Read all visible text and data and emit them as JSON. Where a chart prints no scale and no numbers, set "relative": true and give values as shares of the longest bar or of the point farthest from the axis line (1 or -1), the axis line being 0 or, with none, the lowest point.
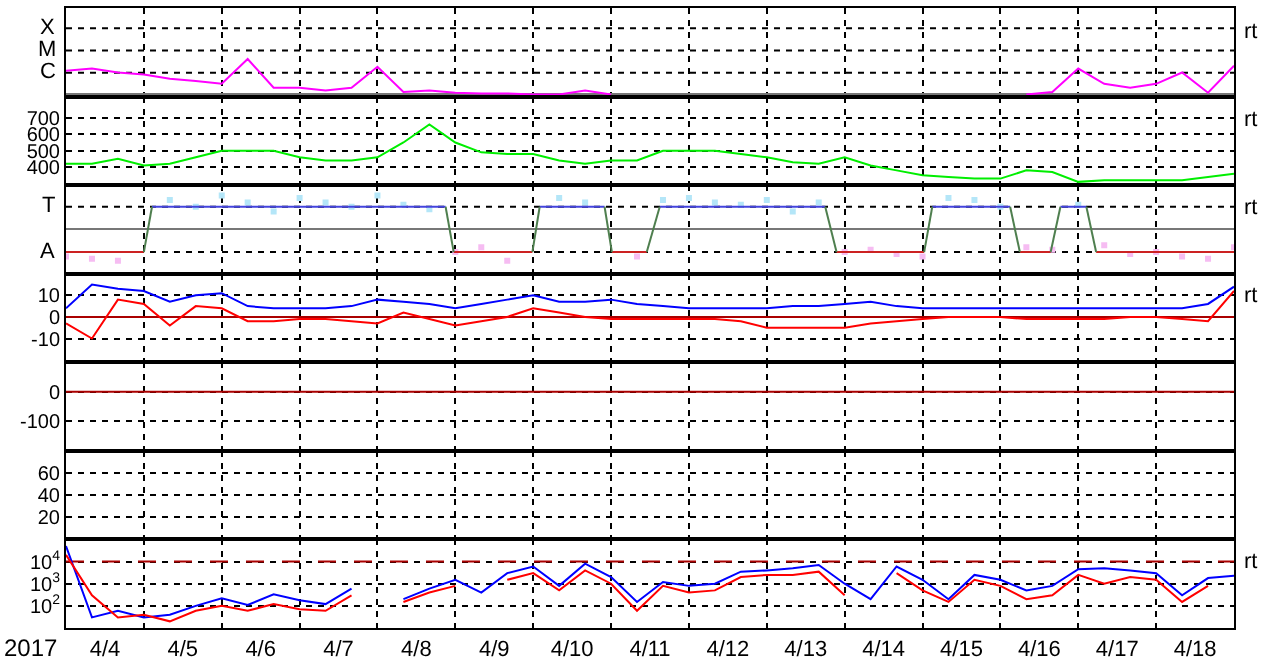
{
  "chart_data": [
    {
      "type": "line",
      "relative": true,
      "grid": "x",
      "tick_labels": false,
      "xlim": [
        "2017-04-04T00:00",
        "2017-04-19T00:00"
      ],
      "xticks": [
        {
          "value": "2017-04-05T00:00",
          "label": null
        },
        {
          "value": "2017-04-06T00:00",
          "label": null
        },
        {
          "value": "2017-04-07T00:00",
          "label": null
        },
        {
          "value": "2017-04-08T00:00",
          "label": null
        },
        {
          "value": "2017-04-09T00:00",
          "label": null
        },
        {
          "value": "2017-04-10T00:00",
          "label": null
        },
        {
          "value": "2017-04-11T00:00",
          "label": null
        },
        {
          "value": "2017-04-12T00:00",
          "label": null
        },
        {
          "value": "2017-04-13T00:00",
          "label": null
        },
        {
          "value": "2017-04-14T00:00",
          "label": null
        },
        {
          "value": "2017-04-15T00:00",
          "label": null
        },
        {
          "value": "2017-04-16T00:00",
          "label": null
        },
        {
          "value": "2017-04-17T00:00",
          "label": null
        },
        {
          "value": "2017-04-18T00:00",
          "label": null
        }
      ],
      "x": [
        "2017-04-04T00:00",
        "2017-04-04T08:00",
        "2017-04-04T16:00",
        "2017-04-05T00:00",
        "2017-04-05T08:00",
        "2017-04-05T16:00",
        "2017-04-06T00:00",
        "2017-04-06T08:00",
        "2017-04-06T16:00",
        "2017-04-07T00:00",
        "2017-04-07T08:00",
        "2017-04-07T16:00",
        "2017-04-08T00:00",
        "2017-04-08T08:00",
        "2017-04-08T16:00",
        "2017-04-09T00:00",
        "2017-04-09T08:00",
        "2017-04-09T16:00",
        "2017-04-10T00:00",
        "2017-04-10T08:00",
        "2017-04-10T16:00",
        "2017-04-11T00:00",
        "2017-04-11T08:00",
        "2017-04-11T16:00",
        "2017-04-12T00:00",
        "2017-04-12T08:00",
        "2017-04-12T16:00",
        "2017-04-13T00:00",
        "2017-04-13T08:00",
        "2017-04-13T16:00",
        "2017-04-14T00:00",
        "2017-04-14T08:00",
        "2017-04-14T16:00",
        "2017-04-15T00:00",
        "2017-04-15T08:00",
        "2017-04-15T16:00",
        "2017-04-16T00:00",
        "2017-04-16T08:00",
        "2017-04-16T16:00",
        "2017-04-17T00:00",
        "2017-04-17T08:00",
        "2017-04-17T16:00",
        "2017-04-18T00:00",
        "2017-04-18T08:00",
        "2017-04-18T16:00",
        "2017-04-19T00:00"
      ],
      "annotations": [
        "rt",
        "X",
        "M",
        "C"
      ],
      "series": [
        {
          "color": "#ff00ff",
          "values": [
            0.67,
            0.73,
            0.62,
            0.56,
            0.44,
            0.38,
            0.3,
            1,
            0.19,
            0.19,
            0.11,
            0.19,
            0.78,
            0.07,
            0.11,
            0.05,
            0.03,
            0.03,
            0,
            0,
            0.11,
            0,
            null,
            null,
            null,
            null,
            null,
            null,
            null,
            null,
            null,
            null,
            null,
            null,
            null,
            null,
            null,
            0,
            0.07,
            0.73,
            0.3,
            0.19,
            0.3,
            0.62,
            0.05,
            0.81
          ]
        }
      ]
    },
    {
      "type": "line",
      "grid": true,
      "tick_labels": "y",
      "ylim": [
        290,
        830
      ],
      "yticks": [
        400,
        500,
        600,
        700
      ],
      "xlim": [
        "2017-04-04T00:00",
        "2017-04-19T00:00"
      ],
      "xticks": [
        {
          "value": "2017-04-05T00:00",
          "label": null
        },
        {
          "value": "2017-04-06T00:00",
          "label": null
        },
        {
          "value": "2017-04-07T00:00",
          "label": null
        },
        {
          "value": "2017-04-08T00:00",
          "label": null
        },
        {
          "value": "2017-04-09T00:00",
          "label": null
        },
        {
          "value": "2017-04-10T00:00",
          "label": null
        },
        {
          "value": "2017-04-11T00:00",
          "label": null
        },
        {
          "value": "2017-04-12T00:00",
          "label": null
        },
        {
          "value": "2017-04-13T00:00",
          "label": null
        },
        {
          "value": "2017-04-14T00:00",
          "label": null
        },
        {
          "value": "2017-04-15T00:00",
          "label": null
        },
        {
          "value": "2017-04-16T00:00",
          "label": null
        },
        {
          "value": "2017-04-17T00:00",
          "label": null
        },
        {
          "value": "2017-04-18T00:00",
          "label": null
        }
      ],
      "x": [
        "2017-04-04T00:00",
        "2017-04-04T08:00",
        "2017-04-04T16:00",
        "2017-04-05T00:00",
        "2017-04-05T08:00",
        "2017-04-05T16:00",
        "2017-04-06T00:00",
        "2017-04-06T08:00",
        "2017-04-06T16:00",
        "2017-04-07T00:00",
        "2017-04-07T08:00",
        "2017-04-07T16:00",
        "2017-04-08T00:00",
        "2017-04-08T08:00",
        "2017-04-08T16:00",
        "2017-04-09T00:00",
        "2017-04-09T08:00",
        "2017-04-09T16:00",
        "2017-04-10T00:00",
        "2017-04-10T08:00",
        "2017-04-10T16:00",
        "2017-04-11T00:00",
        "2017-04-11T08:00",
        "2017-04-11T16:00",
        "2017-04-12T00:00",
        "2017-04-12T08:00",
        "2017-04-12T16:00",
        "2017-04-13T00:00",
        "2017-04-13T08:00",
        "2017-04-13T16:00",
        "2017-04-14T00:00",
        "2017-04-14T08:00",
        "2017-04-14T16:00",
        "2017-04-15T00:00",
        "2017-04-15T08:00",
        "2017-04-15T16:00",
        "2017-04-16T00:00",
        "2017-04-16T08:00",
        "2017-04-16T16:00",
        "2017-04-17T00:00",
        "2017-04-17T08:00",
        "2017-04-17T16:00",
        "2017-04-18T00:00",
        "2017-04-18T08:00",
        "2017-04-18T16:00",
        "2017-04-19T00:00"
      ],
      "annotations": [
        "rt"
      ],
      "series": [
        {
          "color": "#00ee00",
          "values": [
            420,
            420,
            450,
            410,
            420,
            460,
            500,
            500,
            500,
            460,
            440,
            440,
            460,
            550,
            660,
            550,
            490,
            480,
            480,
            440,
            420,
            440,
            440,
            500,
            500,
            500,
            480,
            460,
            430,
            420,
            460,
            410,
            380,
            350,
            340,
            330,
            330,
            380,
            370,
            310,
            320,
            320,
            320,
            320,
            340,
            360
          ]
        }
      ]
    },
    {
      "type": "line",
      "relative": true,
      "grid": "x",
      "tick_labels": false,
      "xlim": [
        "2017-04-04T00:00",
        "2017-04-19T00:00"
      ],
      "xticks": [
        {
          "value": "2017-04-05T00:00",
          "label": null
        },
        {
          "value": "2017-04-06T00:00",
          "label": null
        },
        {
          "value": "2017-04-07T00:00",
          "label": null
        },
        {
          "value": "2017-04-08T00:00",
          "label": null
        },
        {
          "value": "2017-04-09T00:00",
          "label": null
        },
        {
          "value": "2017-04-10T00:00",
          "label": null
        },
        {
          "value": "2017-04-11T00:00",
          "label": null
        },
        {
          "value": "2017-04-12T00:00",
          "label": null
        },
        {
          "value": "2017-04-13T00:00",
          "label": null
        },
        {
          "value": "2017-04-14T00:00",
          "label": null
        },
        {
          "value": "2017-04-15T00:00",
          "label": null
        },
        {
          "value": "2017-04-16T00:00",
          "label": null
        },
        {
          "value": "2017-04-17T00:00",
          "label": null
        },
        {
          "value": "2017-04-18T00:00",
          "label": null
        }
      ],
      "x": [
        "2017-04-04T00:00",
        "2017-04-04T08:00",
        "2017-04-04T16:00",
        "2017-04-05T00:00",
        "2017-04-05T08:00",
        "2017-04-05T16:00",
        "2017-04-06T00:00",
        "2017-04-06T08:00",
        "2017-04-06T16:00",
        "2017-04-07T00:00",
        "2017-04-07T08:00",
        "2017-04-07T16:00",
        "2017-04-08T00:00",
        "2017-04-08T08:00",
        "2017-04-08T16:00",
        "2017-04-09T00:00",
        "2017-04-09T08:00",
        "2017-04-09T16:00",
        "2017-04-10T00:00",
        "2017-04-10T08:00",
        "2017-04-10T16:00",
        "2017-04-11T00:00",
        "2017-04-11T08:00",
        "2017-04-11T16:00",
        "2017-04-12T00:00",
        "2017-04-12T08:00",
        "2017-04-12T16:00",
        "2017-04-13T00:00",
        "2017-04-13T08:00",
        "2017-04-13T16:00",
        "2017-04-14T00:00",
        "2017-04-14T08:00",
        "2017-04-14T16:00",
        "2017-04-15T00:00",
        "2017-04-15T08:00",
        "2017-04-15T16:00",
        "2017-04-16T00:00",
        "2017-04-16T08:00",
        "2017-04-16T16:00",
        "2017-04-17T00:00",
        "2017-04-17T08:00",
        "2017-04-17T16:00",
        "2017-04-18T00:00",
        "2017-04-18T08:00",
        "2017-04-18T16:00",
        "2017-04-19T00:00"
      ],
      "annotations": [
        "rt",
        "T",
        "A"
      ],
      "series": [
        {
          "type": "scatter",
          "marker": "square",
          "color": "#b4e6f8",
          "values": [
            null,
            null,
            null,
            null,
            0.87,
            0.67,
            1,
            0.8,
            0.53,
            0.93,
            0.8,
            0.67,
            1,
            0.73,
            0.6,
            null,
            null,
            null,
            null,
            0.93,
            0.8,
            null,
            null,
            0.87,
            0.93,
            0.8,
            0.73,
            0.87,
            0.53,
            0.8,
            null,
            null,
            null,
            null,
            0.93,
            0.87,
            0.67,
            null,
            null,
            0.73,
            null,
            null,
            null,
            null,
            null,
            null
          ]
        },
        {
          "type": "scatter",
          "marker": "square",
          "color": "#f6bcf2",
          "values": [
            -0.8,
            -0.87,
            -0.93,
            null,
            null,
            null,
            null,
            null,
            null,
            null,
            null,
            null,
            null,
            null,
            null,
            -0.67,
            -0.53,
            -0.93,
            null,
            null,
            null,
            null,
            -0.8,
            null,
            null,
            null,
            null,
            null,
            null,
            null,
            -0.67,
            -0.6,
            -0.73,
            -0.8,
            null,
            null,
            null,
            -0.53,
            -0.6,
            null,
            -0.47,
            -0.73,
            -0.67,
            -0.8,
            -0.87,
            -0.53
          ]
        },
        {
          "color": "#4444dd",
          "x": [
            "2017-04-05T02:30",
            "2017-04-08T21:00",
            "2017-04-09T12:00",
            "2017-04-10T02:00",
            "2017-04-10T22:00",
            "2017-04-11T06:00",
            "2017-04-11T15:00",
            "2017-04-13T18:00",
            "2017-04-14T12:00",
            "2017-04-15T03:00",
            "2017-04-16T03:00",
            "2017-04-16T12:00",
            "2017-04-16T18:30",
            "2017-04-17T02:30"
          ],
          "values": [
            0.67,
            0.67,
            null,
            0.67,
            0.67,
            null,
            0.67,
            0.67,
            null,
            0.67,
            0.67,
            null,
            0.67,
            0.67
          ]
        },
        {
          "color": "#cc2222",
          "x": [
            "2017-04-04T00:00",
            "2017-04-05T00:00",
            "2017-04-07T00:00",
            "2017-04-08T23:30",
            "2017-04-09T23:45",
            "2017-04-10T12:00",
            "2017-04-11T00:15",
            "2017-04-11T11:00",
            "2017-04-12T12:00",
            "2017-04-13T21:30",
            "2017-04-15T00:30",
            "2017-04-15T12:00",
            "2017-04-16T06:00",
            "2017-04-16T15:30",
            "2017-04-16T23:00",
            "2017-04-17T05:30",
            "2017-04-19T00:00"
          ],
          "values": [
            -0.67,
            -0.67,
            null,
            -0.67,
            -0.67,
            null,
            -0.67,
            -0.67,
            null,
            -0.67,
            -0.67,
            null,
            -0.67,
            -0.67,
            null,
            -0.67,
            -0.67
          ]
        },
        {
          "color": "#4f7f4f",
          "x": [
            "2017-04-05T00:00",
            "2017-04-05T02:30",
            "2017-04-07T00:00",
            "2017-04-08T21:00",
            "2017-04-08T23:30",
            "2017-04-09T12:00",
            "2017-04-09T23:45",
            "2017-04-10T02:00",
            "2017-04-10T12:00",
            "2017-04-10T22:00",
            "2017-04-11T00:15",
            "2017-04-11T06:00",
            "2017-04-11T11:00",
            "2017-04-11T15:00",
            "2017-04-12T12:00",
            "2017-04-13T18:00",
            "2017-04-13T21:30",
            "2017-04-14T12:00",
            "2017-04-15T00:30",
            "2017-04-15T03:00",
            "2017-04-15T12:00",
            "2017-04-16T03:00",
            "2017-04-16T06:00",
            "2017-04-16T12:00",
            "2017-04-16T15:30",
            "2017-04-16T18:30",
            "2017-04-16T23:00",
            "2017-04-17T02:30",
            "2017-04-17T05:30"
          ],
          "values": [
            -0.67,
            0.67,
            null,
            0.67,
            -0.67,
            null,
            -0.67,
            0.67,
            null,
            0.67,
            -0.67,
            null,
            -0.67,
            0.67,
            null,
            0.67,
            -0.67,
            null,
            -0.67,
            0.67,
            null,
            0.67,
            -0.67,
            null,
            -0.67,
            0.67,
            null,
            0.67,
            -0.67
          ]
        }
      ]
    },
    {
      "type": "line",
      "grid": true,
      "tick_labels": "y",
      "ylim": [
        -21,
        20
      ],
      "yticks": [
        10,
        0,
        -10
      ],
      "xlim": [
        "2017-04-04T00:00",
        "2017-04-19T00:00"
      ],
      "xticks": [
        {
          "value": "2017-04-05T00:00",
          "label": null
        },
        {
          "value": "2017-04-06T00:00",
          "label": null
        },
        {
          "value": "2017-04-07T00:00",
          "label": null
        },
        {
          "value": "2017-04-08T00:00",
          "label": null
        },
        {
          "value": "2017-04-09T00:00",
          "label": null
        },
        {
          "value": "2017-04-10T00:00",
          "label": null
        },
        {
          "value": "2017-04-11T00:00",
          "label": null
        },
        {
          "value": "2017-04-12T00:00",
          "label": null
        },
        {
          "value": "2017-04-13T00:00",
          "label": null
        },
        {
          "value": "2017-04-14T00:00",
          "label": null
        },
        {
          "value": "2017-04-15T00:00",
          "label": null
        },
        {
          "value": "2017-04-16T00:00",
          "label": null
        },
        {
          "value": "2017-04-17T00:00",
          "label": null
        },
        {
          "value": "2017-04-18T00:00",
          "label": null
        }
      ],
      "x": [
        "2017-04-04T00:00",
        "2017-04-04T08:00",
        "2017-04-04T16:00",
        "2017-04-05T00:00",
        "2017-04-05T08:00",
        "2017-04-05T16:00",
        "2017-04-06T00:00",
        "2017-04-06T08:00",
        "2017-04-06T16:00",
        "2017-04-07T00:00",
        "2017-04-07T08:00",
        "2017-04-07T16:00",
        "2017-04-08T00:00",
        "2017-04-08T08:00",
        "2017-04-08T16:00",
        "2017-04-09T00:00",
        "2017-04-09T08:00",
        "2017-04-09T16:00",
        "2017-04-10T00:00",
        "2017-04-10T08:00",
        "2017-04-10T16:00",
        "2017-04-11T00:00",
        "2017-04-11T08:00",
        "2017-04-11T16:00",
        "2017-04-12T00:00",
        "2017-04-12T08:00",
        "2017-04-12T16:00",
        "2017-04-13T00:00",
        "2017-04-13T08:00",
        "2017-04-13T16:00",
        "2017-04-14T00:00",
        "2017-04-14T08:00",
        "2017-04-14T16:00",
        "2017-04-15T00:00",
        "2017-04-15T08:00",
        "2017-04-15T16:00",
        "2017-04-16T00:00",
        "2017-04-16T08:00",
        "2017-04-16T16:00",
        "2017-04-17T00:00",
        "2017-04-17T08:00",
        "2017-04-17T16:00",
        "2017-04-18T00:00",
        "2017-04-18T08:00",
        "2017-04-18T16:00",
        "2017-04-19T00:00"
      ],
      "ref_lines": [
        {
          "axis": "y",
          "value": 0,
          "color": "#aa0000"
        }
      ],
      "annotations": [
        "rt"
      ],
      "series": [
        {
          "color": "#0000ff",
          "values": [
            4,
            15,
            13,
            12,
            7,
            10,
            11,
            5,
            4,
            4,
            4,
            5,
            8,
            7,
            6,
            4,
            6,
            8,
            10,
            7,
            7,
            8,
            6,
            5,
            4,
            4,
            4,
            4,
            5,
            5,
            6,
            7,
            5,
            4,
            4,
            4,
            4,
            4,
            4,
            4,
            4,
            4,
            4,
            4,
            6,
            14
          ]
        },
        {
          "color": "#ff0000",
          "values": [
            -3,
            -10,
            8,
            6,
            -4,
            5,
            4,
            -2,
            -2,
            -1,
            -1,
            -2,
            -3,
            2,
            -1,
            -4,
            -2,
            0,
            4,
            2,
            0,
            -1,
            -1,
            -1,
            -1,
            -1,
            -2,
            -5,
            -5,
            -5,
            -5,
            -3,
            -2,
            -1,
            0,
            0,
            0,
            -1,
            -1,
            -1,
            -1,
            0,
            0,
            -1,
            -2,
            12
          ]
        }
      ]
    },
    {
      "type": "line",
      "grid": true,
      "tick_labels": "y",
      "ylim": [
        -200,
        100
      ],
      "yticks": [
        0,
        -100
      ],
      "xlim": [
        "2017-04-04T00:00",
        "2017-04-19T00:00"
      ],
      "xticks": [
        {
          "value": "2017-04-05T00:00",
          "label": null
        },
        {
          "value": "2017-04-06T00:00",
          "label": null
        },
        {
          "value": "2017-04-07T00:00",
          "label": null
        },
        {
          "value": "2017-04-08T00:00",
          "label": null
        },
        {
          "value": "2017-04-09T00:00",
          "label": null
        },
        {
          "value": "2017-04-10T00:00",
          "label": null
        },
        {
          "value": "2017-04-11T00:00",
          "label": null
        },
        {
          "value": "2017-04-12T00:00",
          "label": null
        },
        {
          "value": "2017-04-13T00:00",
          "label": null
        },
        {
          "value": "2017-04-14T00:00",
          "label": null
        },
        {
          "value": "2017-04-15T00:00",
          "label": null
        },
        {
          "value": "2017-04-16T00:00",
          "label": null
        },
        {
          "value": "2017-04-17T00:00",
          "label": null
        },
        {
          "value": "2017-04-18T00:00",
          "label": null
        }
      ],
      "ref_lines": [
        {
          "axis": "y",
          "value": 0,
          "color": "#aa0000"
        }
      ]
    },
    {
      "type": "line",
      "grid": true,
      "tick_labels": "y",
      "ylim": [
        0,
        80
      ],
      "yticks": [
        20,
        40,
        60
      ],
      "xlim": [
        "2017-04-04T00:00",
        "2017-04-19T00:00"
      ],
      "xticks": [
        {
          "value": "2017-04-05T00:00",
          "label": null
        },
        {
          "value": "2017-04-06T00:00",
          "label": null
        },
        {
          "value": "2017-04-07T00:00",
          "label": null
        },
        {
          "value": "2017-04-08T00:00",
          "label": null
        },
        {
          "value": "2017-04-09T00:00",
          "label": null
        },
        {
          "value": "2017-04-10T00:00",
          "label": null
        },
        {
          "value": "2017-04-11T00:00",
          "label": null
        },
        {
          "value": "2017-04-12T00:00",
          "label": null
        },
        {
          "value": "2017-04-13T00:00",
          "label": null
        },
        {
          "value": "2017-04-14T00:00",
          "label": null
        },
        {
          "value": "2017-04-15T00:00",
          "label": null
        },
        {
          "value": "2017-04-16T00:00",
          "label": null
        },
        {
          "value": "2017-04-17T00:00",
          "label": null
        },
        {
          "value": "2017-04-18T00:00",
          "label": null
        }
      ]
    },
    {
      "type": "line",
      "log": "y",
      "grid": true,
      "ylim": [
        10,
        100000
      ],
      "yticks": [
        {
          "value": 10000,
          "label": "10$^{4}$"
        },
        {
          "value": 1000,
          "label": "10$^{3}$"
        },
        {
          "value": 100,
          "label": "10$^{2}$"
        }
      ],
      "xlim": [
        "2017-04-04T00:00",
        "2017-04-19T00:00"
      ],
      "xlabel": "2017",
      "xticks": [
        {
          "value": "2017-04-04T12:00",
          "label": "4/4"
        },
        {
          "value": "2017-04-05T00:00",
          "label": null
        },
        {
          "value": "2017-04-05T12:00",
          "label": "4/5"
        },
        {
          "value": "2017-04-06T00:00",
          "label": null
        },
        {
          "value": "2017-04-06T12:00",
          "label": "4/6"
        },
        {
          "value": "2017-04-07T00:00",
          "label": null
        },
        {
          "value": "2017-04-07T12:00",
          "label": "4/7"
        },
        {
          "value": "2017-04-08T00:00",
          "label": null
        },
        {
          "value": "2017-04-08T12:00",
          "label": "4/8"
        },
        {
          "value": "2017-04-09T00:00",
          "label": null
        },
        {
          "value": "2017-04-09T12:00",
          "label": "4/9"
        },
        {
          "value": "2017-04-10T00:00",
          "label": null
        },
        {
          "value": "2017-04-10T12:00",
          "label": "4/10"
        },
        {
          "value": "2017-04-11T00:00",
          "label": null
        },
        {
          "value": "2017-04-11T12:00",
          "label": "4/11"
        },
        {
          "value": "2017-04-12T00:00",
          "label": null
        },
        {
          "value": "2017-04-12T12:00",
          "label": "4/12"
        },
        {
          "value": "2017-04-13T00:00",
          "label": null
        },
        {
          "value": "2017-04-13T12:00",
          "label": "4/13"
        },
        {
          "value": "2017-04-14T00:00",
          "label": null
        },
        {
          "value": "2017-04-14T12:00",
          "label": "4/14"
        },
        {
          "value": "2017-04-15T00:00",
          "label": null
        },
        {
          "value": "2017-04-15T12:00",
          "label": "4/15"
        },
        {
          "value": "2017-04-16T00:00",
          "label": null
        },
        {
          "value": "2017-04-16T12:00",
          "label": "4/16"
        },
        {
          "value": "2017-04-17T00:00",
          "label": null
        },
        {
          "value": "2017-04-17T12:00",
          "label": "4/17"
        },
        {
          "value": "2017-04-18T00:00",
          "label": null
        },
        {
          "value": "2017-04-18T12:00",
          "label": "4/18"
        }
      ],
      "x": [
        "2017-04-04T00:00",
        "2017-04-04T08:00",
        "2017-04-04T16:00",
        "2017-04-05T00:00",
        "2017-04-05T08:00",
        "2017-04-05T16:00",
        "2017-04-06T00:00",
        "2017-04-06T08:00",
        "2017-04-06T16:00",
        "2017-04-07T00:00",
        "2017-04-07T08:00",
        "2017-04-07T16:00",
        "2017-04-08T00:00",
        "2017-04-08T08:00",
        "2017-04-08T16:00",
        "2017-04-09T00:00",
        "2017-04-09T08:00",
        "2017-04-09T16:00",
        "2017-04-10T00:00",
        "2017-04-10T08:00",
        "2017-04-10T16:00",
        "2017-04-11T00:00",
        "2017-04-11T08:00",
        "2017-04-11T16:00",
        "2017-04-12T00:00",
        "2017-04-12T08:00",
        "2017-04-12T16:00",
        "2017-04-13T00:00",
        "2017-04-13T08:00",
        "2017-04-13T16:00",
        "2017-04-14T00:00",
        "2017-04-14T08:00",
        "2017-04-14T16:00",
        "2017-04-15T00:00",
        "2017-04-15T08:00",
        "2017-04-15T16:00",
        "2017-04-16T00:00",
        "2017-04-16T08:00",
        "2017-04-16T16:00",
        "2017-04-17T00:00",
        "2017-04-17T08:00",
        "2017-04-17T16:00",
        "2017-04-18T00:00",
        "2017-04-18T08:00",
        "2017-04-18T16:00",
        "2017-04-19T00:00"
      ],
      "ref_lines": [
        {
          "axis": "y",
          "value": 10000,
          "color": "#aa0000",
          "line_style": "dashed"
        }
      ],
      "annotations": [
        "rt"
      ],
      "series": [
        {
          "color": "#0000ff",
          "values": [
            50000,
            30,
            60,
            30,
            40,
            100,
            220,
            110,
            330,
            180,
            120,
            600,
            null,
            200,
            600,
            1500,
            400,
            3000,
            6000,
            800,
            8000,
            2000,
            150,
            1200,
            800,
            1000,
            3500,
            4000,
            5000,
            7000,
            1000,
            200,
            6000,
            1500,
            200,
            2500,
            1500,
            500,
            800,
            4500,
            5000,
            4000,
            3000,
            300,
            1800,
            2300
          ]
        },
        {
          "color": "#ff0000",
          "values": [
            20000,
            300,
            30,
            40,
            20,
            60,
            100,
            60,
            120,
            70,
            60,
            300,
            null,
            150,
            400,
            800,
            null,
            1500,
            3000,
            500,
            4000,
            1000,
            60,
            800,
            400,
            500,
            2000,
            2500,
            2500,
            3500,
            300,
            null,
            3000,
            500,
            150,
            1500,
            800,
            200,
            300,
            2500,
            1000,
            2000,
            1500,
            150,
            800,
            null
          ]
        }
      ]
    }
  ]
}
